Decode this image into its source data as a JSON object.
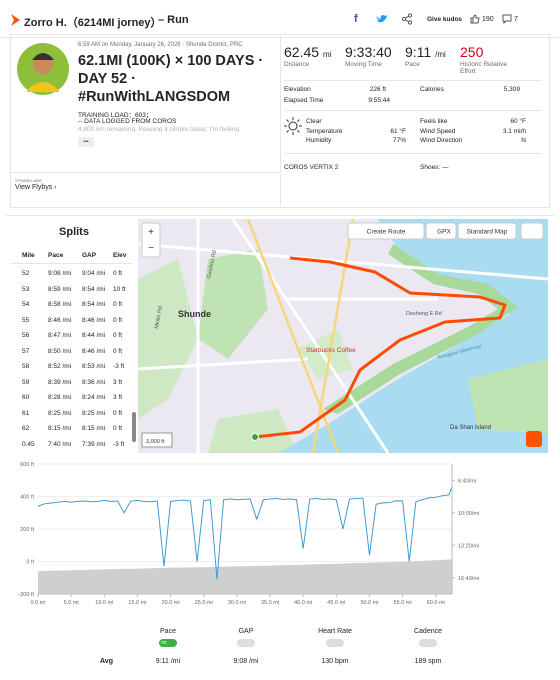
{
  "header": {
    "name": "Zorro H.（6214MI jorney）",
    "activity": "– Run",
    "kudos_button": "Give kudos",
    "kudos_count": "190",
    "comment_count": "7"
  },
  "activity": {
    "date_location": "6:59 AM on Monday, January 26, 2026 · Shunde District, PRC",
    "title": "62.1MI (100K) × 100 DAYS · DAY 52 · #RunWithLANGSDOM",
    "description": [
      "TRAINING LOAD：603；",
      "-- DATA LOGGED FROM COROS",
      "4,800 km remaining. Keeping it simple today: I'm feeling"
    ],
    "more": "•••",
    "labs": "STRAVA LABS",
    "flybys": "View Flybys ›"
  },
  "stats": {
    "primary": [
      {
        "value": "62.45",
        "unit": "mi",
        "label": "Distance"
      },
      {
        "value": "9:33:40",
        "label": "Moving Time"
      },
      {
        "value": "9:11",
        "unit": "/mi",
        "label": "Pace"
      },
      {
        "value": "250",
        "label": "Historic Relative Effort"
      }
    ],
    "elevation": {
      "label": "Elevation",
      "value": "226 ft"
    },
    "calories": {
      "label": "Calories",
      "value": "5,309"
    },
    "elapsed": {
      "label": "Elapsed Time",
      "value": "9:55:44"
    },
    "weather": {
      "condition": "Clear",
      "temperature_label": "Temperature",
      "temperature": "61 °F",
      "humidity_label": "Humidity",
      "humidity": "77%",
      "feels_like_label": "Feels like",
      "feels_like": "60 °F",
      "wind_speed_label": "Wind Speed",
      "wind_speed": "3.1 mi/h",
      "wind_direction_label": "Wind Direction",
      "wind_direction": "N"
    },
    "device": "COROS VERTIX 2",
    "shoes": "Shoes: —"
  },
  "splits": {
    "title": "Splits",
    "columns": [
      "Mile",
      "Pace",
      "GAP",
      "Elev"
    ],
    "rows": [
      [
        "52",
        "9:08 /mi",
        "9:04 /mi",
        "0 ft"
      ],
      [
        "53",
        "8:59 /mi",
        "8:54 /mi",
        "10 ft"
      ],
      [
        "54",
        "8:58 /mi",
        "8:54 /mi",
        "0 ft"
      ],
      [
        "55",
        "8:46 /mi",
        "8:46 /mi",
        "0 ft"
      ],
      [
        "56",
        "8:47 /mi",
        "8:44 /mi",
        "0 ft"
      ],
      [
        "57",
        "8:50 /mi",
        "8:46 /mi",
        "0 ft"
      ],
      [
        "58",
        "8:52 /mi",
        "8:53 /mi",
        "-3 ft"
      ],
      [
        "59",
        "8:39 /mi",
        "8:36 /mi",
        "3 ft"
      ],
      [
        "60",
        "8:28 /mi",
        "8:24 /mi",
        "3 ft"
      ],
      [
        "61",
        "8:25 /mi",
        "8:25 /mi",
        "0 ft"
      ],
      [
        "62",
        "8:15 /mi",
        "8:15 /mi",
        "0 ft"
      ],
      [
        "0.45",
        "7:40 /mi",
        "7:39 /mi",
        "-3 ft"
      ]
    ]
  },
  "map": {
    "buttons": [
      "Create Route",
      "GPX",
      "Standard Map"
    ],
    "zoom": [
      "+",
      "−"
    ],
    "scale": "3,000 ft",
    "labels": [
      {
        "text": "Shunde",
        "kind": "city"
      },
      {
        "text": "Starbucks Coffee",
        "kind": "poi"
      },
      {
        "text": "Desheng E Rd",
        "kind": "road"
      },
      {
        "text": "Da Shan Island",
        "kind": "place"
      },
      {
        "text": "Guizhou Rd",
        "kind": "road"
      },
      {
        "text": "Minlin Rd",
        "kind": "road"
      },
      {
        "text": "Rongguui Waterway",
        "kind": "water"
      }
    ]
  },
  "chart_data": {
    "type": "line",
    "x": [
      0,
      1,
      2,
      3,
      4,
      5,
      6,
      7,
      8,
      9,
      10,
      11,
      12,
      13,
      14,
      15,
      16,
      17,
      18,
      19,
      20,
      21,
      22,
      23,
      24,
      25,
      26,
      27,
      28,
      29,
      30,
      31,
      32,
      33,
      34,
      35,
      36,
      37,
      38,
      39,
      40,
      41,
      42,
      43,
      44,
      45,
      46,
      47,
      48,
      49,
      50,
      51,
      52,
      53,
      54,
      55,
      56,
      57,
      58,
      59,
      60,
      61,
      62,
      62.45
    ],
    "series": [
      {
        "color": "#3e9bd3",
        "axis": "y2",
        "values": [
          560,
          545,
          540,
          535,
          530,
          535,
          530,
          528,
          532,
          530,
          525,
          530,
          528,
          600,
          528,
          525,
          530,
          532,
          528,
          930,
          530,
          525,
          522,
          528,
          900,
          525,
          520,
          1010,
          520,
          515,
          520,
          518,
          515,
          640,
          520,
          515,
          512,
          518,
          515,
          520,
          820,
          515,
          512,
          518,
          515,
          520,
          700,
          515,
          512,
          510,
          860,
          548,
          539,
          538,
          526,
          527,
          900,
          532,
          519,
          508,
          505,
          495,
          490,
          440
        ]
      },
      {
        "color": "#cfcfcf",
        "values": [
          -60,
          -58,
          -57,
          -55,
          -55,
          -54,
          -52,
          -52,
          -50,
          -50,
          -48,
          -47,
          -46,
          -45,
          -45,
          -44,
          -42,
          -42,
          -40,
          -40,
          -38,
          -38,
          -37,
          -36,
          -35,
          -35,
          -34,
          -33,
          -32,
          -30,
          -30,
          -29,
          -28,
          -27,
          -26,
          -25,
          -24,
          -23,
          -22,
          -21,
          -20,
          -18,
          -17,
          -16,
          -15,
          -14,
          -12,
          -11,
          -10,
          -9,
          -8,
          -6,
          -5,
          -4,
          -3,
          -2,
          0,
          2,
          4,
          6,
          8,
          10,
          12,
          15
        ]
      }
    ],
    "xlim": [
      0,
      62.45
    ],
    "xticks": [
      {
        "value": 0,
        "label": "0.0 mi"
      },
      {
        "value": 5,
        "label": "5.0 mi"
      },
      {
        "value": 10,
        "label": "10.0 mi"
      },
      {
        "value": 15,
        "label": "15.0 mi"
      },
      {
        "value": 20,
        "label": "20.0 mi"
      },
      {
        "value": 25,
        "label": "25.0 mi"
      },
      {
        "value": 30,
        "label": "30.0 mi"
      },
      {
        "value": 35,
        "label": "35.0 mi"
      },
      {
        "value": 40,
        "label": "40.0 mi"
      },
      {
        "value": 45,
        "label": "45.0 mi"
      },
      {
        "value": 50,
        "label": "50.0 mi"
      },
      {
        "value": 55,
        "label": "55.0 mi"
      },
      {
        "value": 60,
        "label": "60.0 mi"
      }
    ],
    "ylim": [
      -200,
      600
    ],
    "yticks": [
      {
        "value": 600,
        "label": "600 ft"
      },
      {
        "value": 400,
        "label": "400 ft"
      },
      {
        "value": 200,
        "label": "200 ft"
      },
      {
        "value": 0,
        "label": "0 ft"
      },
      {
        "value": -200,
        "label": "-200 ft"
      }
    ],
    "y2lim": [
      1100,
      300
    ],
    "y2ticks": [
      {
        "value": 400,
        "label": "6:40/mi"
      },
      {
        "value": 600,
        "label": "10:00/mi"
      },
      {
        "value": 800,
        "label": "13:20/mi"
      },
      {
        "value": 1000,
        "label": "16:40/mi"
      }
    ],
    "grid": true
  },
  "toggles": {
    "items": [
      {
        "label": "Pace",
        "state": "on",
        "avg": "9:11 /mi"
      },
      {
        "label": "GAP",
        "avg": "9:08 /mi"
      },
      {
        "label": "Heart Rate",
        "avg": "130 bpm"
      },
      {
        "label": "Cadence",
        "avg": "189 spm"
      }
    ],
    "avg_label": "Avg"
  }
}
